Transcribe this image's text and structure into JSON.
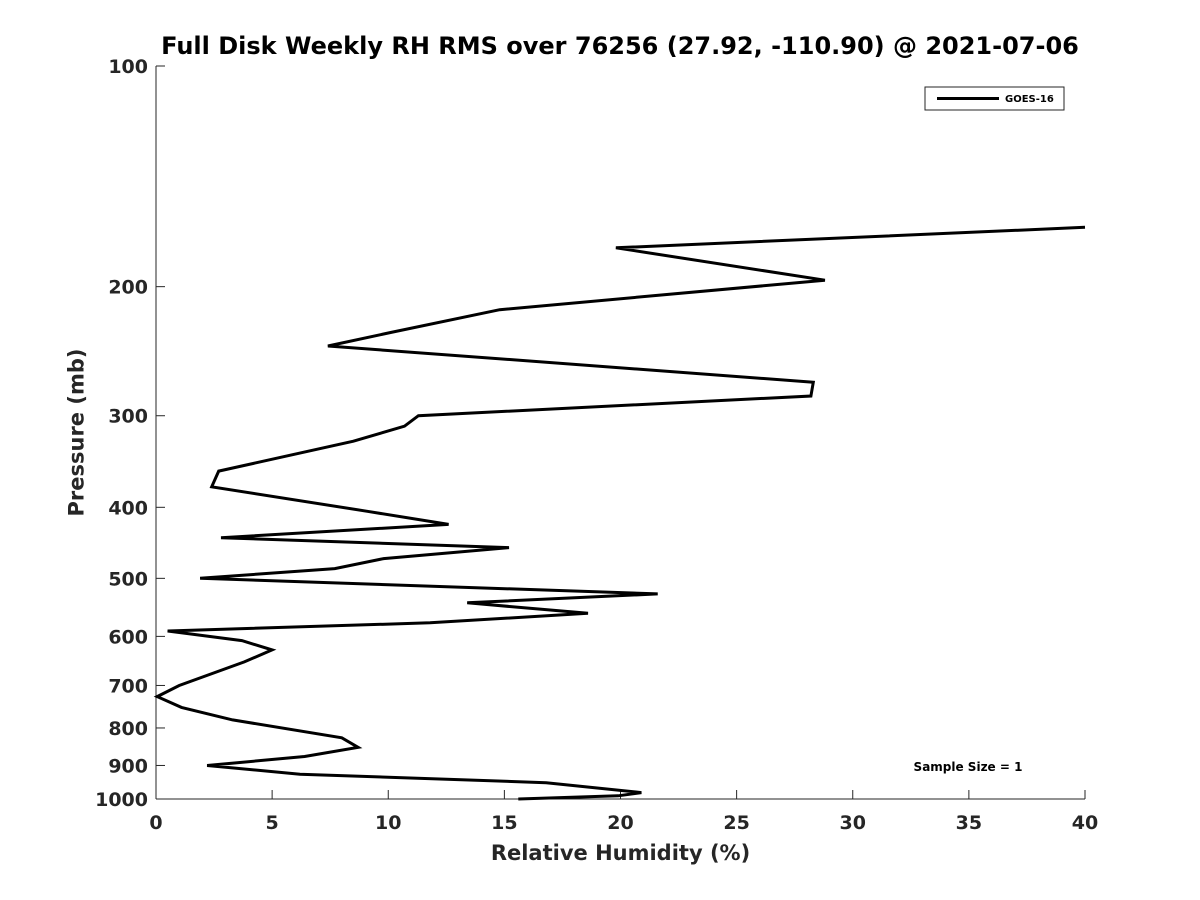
{
  "chart_data": {
    "type": "line",
    "title": "Full Disk Weekly RH RMS over 76256 (27.92, -110.90) @ 2021-07-06",
    "xlabel": "Relative Humidity (%)",
    "ylabel": "Pressure (mb)",
    "xlim": [
      0,
      40
    ],
    "ylim": [
      100,
      1000
    ],
    "y_scale": "log",
    "y_reversed": true,
    "grid": false,
    "legend_position": "top-right",
    "x_ticks": [
      0,
      5,
      10,
      15,
      20,
      25,
      30,
      35,
      40
    ],
    "y_ticks": [
      100,
      200,
      300,
      400,
      500,
      600,
      700,
      800,
      900,
      1000
    ],
    "annotation": "Sample Size = 1",
    "series": [
      {
        "name": "GOES-16",
        "color": "#000000",
        "points": [
          [
            15.6,
            1000
          ],
          [
            19.9,
            990
          ],
          [
            20.9,
            980
          ],
          [
            16.8,
            950
          ],
          [
            6.2,
            925
          ],
          [
            2.2,
            900
          ],
          [
            6.4,
            875
          ],
          [
            8.7,
            850
          ],
          [
            8.0,
            825
          ],
          [
            3.3,
            780
          ],
          [
            1.1,
            750
          ],
          [
            0.05,
            725
          ],
          [
            1.0,
            700
          ],
          [
            3.8,
            650
          ],
          [
            5.0,
            626
          ],
          [
            3.7,
            608
          ],
          [
            0.5,
            590
          ],
          [
            11.8,
            575
          ],
          [
            18.6,
            558
          ],
          [
            13.4,
            540
          ],
          [
            21.6,
            525
          ],
          [
            1.9,
            500
          ],
          [
            7.7,
            485
          ],
          [
            9.8,
            470
          ],
          [
            15.2,
            454
          ],
          [
            2.8,
            440
          ],
          [
            12.6,
            422
          ],
          [
            9.1,
            405
          ],
          [
            2.4,
            375
          ],
          [
            2.7,
            357
          ],
          [
            8.5,
            325
          ],
          [
            10.7,
            310
          ],
          [
            11.3,
            300
          ],
          [
            28.2,
            282
          ],
          [
            28.3,
            270
          ],
          [
            7.4,
            241
          ],
          [
            10.1,
            231
          ],
          [
            14.8,
            215
          ],
          [
            28.8,
            196
          ],
          [
            19.8,
            177
          ],
          [
            40.0,
            166
          ]
        ]
      }
    ]
  }
}
